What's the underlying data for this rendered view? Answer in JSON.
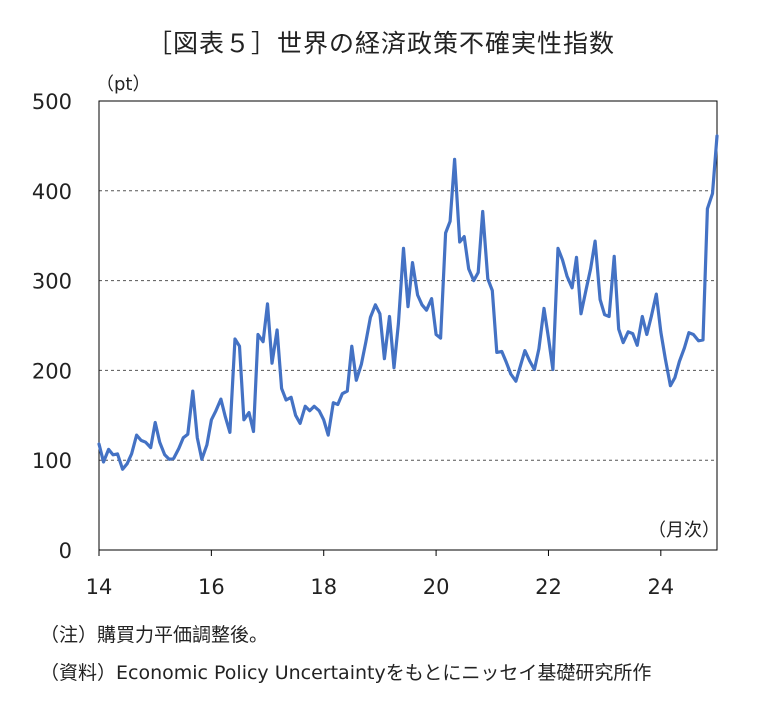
{
  "title": "［図表５］世界の経済政策不確実性指数",
  "y_unit": "（pt）",
  "x_unit": "（月次）",
  "notes": [
    "（注）購買力平価調整後。",
    "（資料）Economic Policy Uncertaintyをもとにニッセイ基礎研究所作"
  ],
  "colors": {
    "line": "#4472C4",
    "axis": "#000000",
    "grid": "#555555"
  },
  "chart_data": {
    "type": "line",
    "title": "［図表５］世界の経済政策不確実性指数",
    "ylabel": "（pt）",
    "xlabel": "（月次）",
    "ylim": [
      0,
      500
    ],
    "yticks": [
      0,
      100,
      200,
      300,
      400,
      500
    ],
    "xlim": [
      14,
      25
    ],
    "xticks": [
      14,
      16,
      18,
      20,
      22,
      24
    ],
    "grid": "horizontal dashed",
    "series": [
      {
        "values": [
          [
            14.0,
            118
          ],
          [
            14.08,
            98
          ],
          [
            14.17,
            112
          ],
          [
            14.25,
            106
          ],
          [
            14.33,
            107
          ],
          [
            14.42,
            90
          ],
          [
            14.5,
            96
          ],
          [
            14.58,
            107
          ],
          [
            14.67,
            128
          ],
          [
            14.75,
            122
          ],
          [
            14.83,
            120
          ],
          [
            14.92,
            114
          ],
          [
            15.0,
            142
          ],
          [
            15.08,
            120
          ],
          [
            15.17,
            106
          ],
          [
            15.25,
            101
          ],
          [
            15.33,
            102
          ],
          [
            15.42,
            113
          ],
          [
            15.5,
            125
          ],
          [
            15.58,
            129
          ],
          [
            15.67,
            177
          ],
          [
            15.75,
            125
          ],
          [
            15.83,
            101
          ],
          [
            15.92,
            117
          ],
          [
            16.0,
            145
          ],
          [
            16.08,
            155
          ],
          [
            16.17,
            168
          ],
          [
            16.25,
            148
          ],
          [
            16.33,
            131
          ],
          [
            16.42,
            235
          ],
          [
            16.5,
            227
          ],
          [
            16.58,
            145
          ],
          [
            16.67,
            153
          ],
          [
            16.75,
            132
          ],
          [
            16.83,
            240
          ],
          [
            16.92,
            232
          ],
          [
            17.0,
            274
          ],
          [
            17.08,
            208
          ],
          [
            17.17,
            245
          ],
          [
            17.25,
            180
          ],
          [
            17.33,
            167
          ],
          [
            17.42,
            170
          ],
          [
            17.5,
            150
          ],
          [
            17.58,
            141
          ],
          [
            17.67,
            160
          ],
          [
            17.75,
            155
          ],
          [
            17.83,
            160
          ],
          [
            17.92,
            155
          ],
          [
            18.0,
            145
          ],
          [
            18.08,
            128
          ],
          [
            18.17,
            164
          ],
          [
            18.25,
            162
          ],
          [
            18.33,
            174
          ],
          [
            18.42,
            177
          ],
          [
            18.5,
            227
          ],
          [
            18.58,
            189
          ],
          [
            18.67,
            207
          ],
          [
            18.75,
            232
          ],
          [
            18.83,
            259
          ],
          [
            18.92,
            273
          ],
          [
            19.0,
            263
          ],
          [
            19.08,
            213
          ],
          [
            19.17,
            260
          ],
          [
            19.25,
            203
          ],
          [
            19.33,
            252
          ],
          [
            19.42,
            336
          ],
          [
            19.5,
            271
          ],
          [
            19.58,
            320
          ],
          [
            19.67,
            284
          ],
          [
            19.75,
            273
          ],
          [
            19.83,
            267
          ],
          [
            19.92,
            280
          ],
          [
            20.0,
            240
          ],
          [
            20.08,
            236
          ],
          [
            20.17,
            353
          ],
          [
            20.25,
            366
          ],
          [
            20.33,
            435
          ],
          [
            20.42,
            343
          ],
          [
            20.5,
            349
          ],
          [
            20.58,
            313
          ],
          [
            20.67,
            300
          ],
          [
            20.75,
            309
          ],
          [
            20.83,
            377
          ],
          [
            20.92,
            302
          ],
          [
            21.0,
            289
          ],
          [
            21.08,
            220
          ],
          [
            21.17,
            221
          ],
          [
            21.25,
            209
          ],
          [
            21.33,
            196
          ],
          [
            21.42,
            188
          ],
          [
            21.5,
            205
          ],
          [
            21.58,
            222
          ],
          [
            21.67,
            210
          ],
          [
            21.75,
            201
          ],
          [
            21.83,
            224
          ],
          [
            21.92,
            269
          ],
          [
            22.0,
            236
          ],
          [
            22.08,
            201
          ],
          [
            22.17,
            336
          ],
          [
            22.25,
            323
          ],
          [
            22.33,
            305
          ],
          [
            22.42,
            292
          ],
          [
            22.5,
            326
          ],
          [
            22.58,
            263
          ],
          [
            22.67,
            290
          ],
          [
            22.75,
            313
          ],
          [
            22.83,
            344
          ],
          [
            22.92,
            279
          ],
          [
            23.0,
            262
          ],
          [
            23.08,
            260
          ],
          [
            23.17,
            327
          ],
          [
            23.25,
            246
          ],
          [
            23.33,
            231
          ],
          [
            23.42,
            243
          ],
          [
            23.5,
            241
          ],
          [
            23.58,
            228
          ],
          [
            23.67,
            260
          ],
          [
            23.75,
            240
          ],
          [
            23.83,
            260
          ],
          [
            23.92,
            285
          ],
          [
            24.0,
            243
          ],
          [
            24.08,
            213
          ],
          [
            24.17,
            183
          ],
          [
            24.25,
            192
          ],
          [
            24.33,
            210
          ],
          [
            24.42,
            225
          ],
          [
            24.5,
            242
          ],
          [
            24.58,
            240
          ],
          [
            24.67,
            233
          ],
          [
            24.75,
            234
          ],
          [
            24.83,
            380
          ],
          [
            24.92,
            397
          ],
          [
            25.0,
            461
          ]
        ]
      }
    ]
  }
}
